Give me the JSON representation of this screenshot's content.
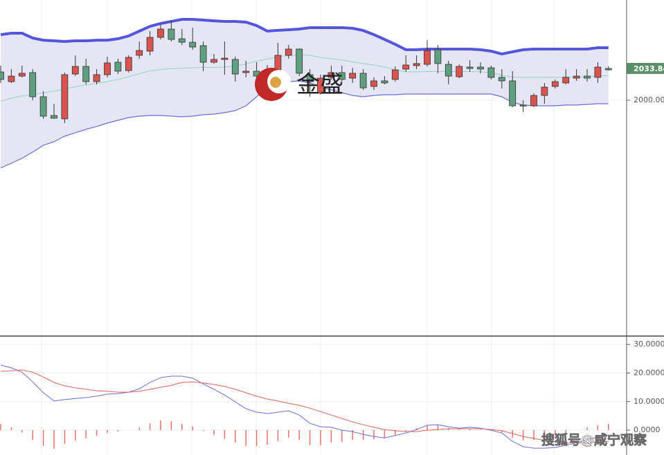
{
  "chart_data": [
    {
      "type": "candlestick",
      "open": [
        2030.1,
        2019.8,
        2025.7,
        2029.4,
        2003.7,
        1983.8,
        1980.2,
        2027.9,
        2036.0,
        2019.8,
        2027.2,
        2040.4,
        2031.6,
        2047.8,
        2052.2,
        2066.9,
        2075.7,
        2065.4,
        2061.7,
        2058.1,
        2040.4,
        2043.4,
        2043.4,
        2029.4,
        2030.9,
        2030.9,
        2030.9,
        2047.8,
        2054.4,
        2027.2,
        2007.4,
        2024.3,
        2029.4,
        2023.5,
        2028.7,
        2014.7,
        2020.6,
        2022.1,
        2033.1,
        2036.8,
        2038.2,
        2053.7,
        2038.2,
        2025.0,
        2035.3,
        2035.3,
        2034.5,
        2024.3,
        2020.6,
        1994.9,
        1994.1,
        2005.1,
        2014.7,
        2018.4,
        2023.5,
        2025.7,
        2024.3,
        2033.8
      ],
      "high": [
        2036.8,
        2033.1,
        2036.8,
        2033.1,
        2009.6,
        1996.3,
        2029.4,
        2047.8,
        2044.1,
        2033.1,
        2046.3,
        2044.1,
        2047.8,
        2062.5,
        2073.5,
        2080.9,
        2084.5,
        2075.7,
        2077.2,
        2062.5,
        2049.2,
        2062.5,
        2046.3,
        2041.9,
        2040.4,
        2037.5,
        2061.0,
        2058.8,
        2055.1,
        2033.1,
        2027.2,
        2036.8,
        2036.8,
        2034.5,
        2033.1,
        2024.3,
        2025.7,
        2036.0,
        2047.8,
        2047.8,
        2063.9,
        2058.8,
        2041.9,
        2038.2,
        2042.6,
        2040.4,
        2036.8,
        2033.1,
        2030.9,
        2000.0,
        2007.4,
        2018.4,
        2022.1,
        2033.1,
        2033.1,
        2033.1,
        2040.4,
        2036.0
      ],
      "low": [
        2018.4,
        2018.4,
        2024.3,
        2000.0,
        1980.2,
        1980.2,
        1975.7,
        2025.7,
        2016.9,
        2016.9,
        2024.3,
        2027.9,
        2029.4,
        2044.1,
        2047.8,
        2064.7,
        2062.5,
        2058.8,
        2053.7,
        2030.9,
        2039.0,
        2027.2,
        2019.8,
        2024.3,
        2018.4,
        2019.8,
        2025.7,
        2044.1,
        2025.7,
        2003.7,
        2005.9,
        2022.1,
        2019.8,
        2018.4,
        2011.0,
        2011.0,
        2016.9,
        2019.8,
        2030.1,
        2033.1,
        2036.0,
        2028.7,
        2016.9,
        2023.5,
        2030.1,
        2028.7,
        2022.1,
        2012.5,
        1992.6,
        1987.5,
        1992.6,
        1996.3,
        2012.5,
        2016.9,
        2020.6,
        2019.8,
        2018.4,
        2031.6
      ],
      "close": [
        2022.1,
        2025.7,
        2028.7,
        2003.7,
        1983.1,
        1980.9,
        2027.2,
        2036.0,
        2019.8,
        2027.2,
        2039.7,
        2030.9,
        2045.6,
        2052.9,
        2066.9,
        2075.7,
        2064.7,
        2061.7,
        2056.6,
        2040.4,
        2043.4,
        2044.8,
        2027.9,
        2030.9,
        2025.7,
        2024.3,
        2047.8,
        2054.4,
        2028.7,
        2019.8,
        2023.5,
        2029.4,
        2022.1,
        2028.7,
        2013.2,
        2020.6,
        2018.4,
        2032.3,
        2037.5,
        2039.0,
        2052.9,
        2039.0,
        2025.7,
        2036.0,
        2033.8,
        2033.1,
        2024.3,
        2020.6,
        1994.1,
        1994.1,
        2005.1,
        2014.0,
        2019.8,
        2024.3,
        2025.7,
        2023.5,
        2035.3,
        2032.3
      ],
      "up_color": "#d9534f",
      "down_color": "#5e9f80",
      "upper_band": {
        "color": "#5454dc",
        "values": [
          2069.8,
          2071.3,
          2071.3,
          2066.2,
          2063.9,
          2063.2,
          2062.5,
          2063.2,
          2063.2,
          2063.9,
          2063.9,
          2065.4,
          2068.4,
          2073.5,
          2078.6,
          2081.6,
          2083.8,
          2086.0,
          2086.0,
          2085.3,
          2084.5,
          2083.8,
          2083.8,
          2083.1,
          2079.4,
          2073.5,
          2074.3,
          2075.0,
          2075.7,
          2077.2,
          2077.2,
          2077.2,
          2077.2,
          2076.5,
          2074.2,
          2069.8,
          2064.7,
          2059.5,
          2053.7,
          2053.7,
          2054.4,
          2054.4,
          2054.4,
          2054.4,
          2054.4,
          2053.7,
          2052.2,
          2049.2,
          2051.5,
          2053.7,
          2054.4,
          2054.4,
          2054.4,
          2054.4,
          2054.4,
          2054.4,
          2055.9,
          2055.9
        ]
      },
      "middle_band": {
        "color": "#8fd6c4",
        "values": [
          1998.9,
          2002.2,
          2004.8,
          2005.6,
          2008.1,
          2009.6,
          2012.2,
          2014.4,
          2016.2,
          2018.0,
          2019.8,
          2022.1,
          2025.0,
          2028.3,
          2031.2,
          2032.7,
          2033.5,
          2034.2,
          2034.6,
          2035.0,
          2034.9,
          2035.3,
          2036.4,
          2038.6,
          2041.6,
          2043.8,
          2046.4,
          2047.4,
          2048.2,
          2047.8,
          2045.6,
          2044.1,
          2042.7,
          2040.8,
          2039.0,
          2037.5,
          2035.3,
          2032.7,
          2030.2,
          2030.2,
          2030.5,
          2030.5,
          2030.5,
          2030.5,
          2030.5,
          2030.2,
          2029.4,
          2026.5,
          2024.7,
          2024.3,
          2024.3,
          2024.3,
          2024.3,
          2024.7,
          2024.7,
          2025.0,
          2026.1,
          2026.1
        ]
      },
      "lower_band": {
        "color": "#6b6be0",
        "values": [
          1928.0,
          1933.1,
          1938.3,
          1944.9,
          1952.2,
          1955.9,
          1961.8,
          1965.5,
          1969.1,
          1972.1,
          1975.7,
          1978.7,
          1981.6,
          1983.1,
          1983.8,
          1983.8,
          1983.1,
          1982.4,
          1983.1,
          1984.6,
          1985.3,
          1986.8,
          1989.0,
          1994.1,
          2003.7,
          2014.0,
          2018.4,
          2019.8,
          2020.6,
          2018.4,
          2014.0,
          2011.0,
          2008.1,
          2005.1,
          2003.7,
          2005.1,
          2005.9,
          2005.9,
          2006.6,
          2006.6,
          2006.6,
          2006.6,
          2006.6,
          2006.6,
          2006.6,
          2006.6,
          2006.6,
          2003.7,
          1997.8,
          1994.9,
          1994.1,
          1994.1,
          1994.1,
          1994.9,
          1994.9,
          1995.6,
          1996.3,
          1996.3
        ]
      },
      "band_fill": "#e5e5f3",
      "ylim": [
        1750,
        2106.6
      ],
      "yticks": [
        {
          "value": 2000,
          "label": "2000.00"
        }
      ],
      "last_price": 2033.84,
      "last_price_color": "#5b8f6a",
      "grid": true
    },
    {
      "type": "macd",
      "series": [
        {
          "color": "#6b6be0",
          "values": [
            22.8,
            21.8,
            20.3,
            16.9,
            13.1,
            10.2,
            10.7,
            11.1,
            11.4,
            11.9,
            12.6,
            12.8,
            13.3,
            14.5,
            16.7,
            18.4,
            18.9,
            18.9,
            18.2,
            16.2,
            14.3,
            12.3,
            9.9,
            7.5,
            6.3,
            5.8,
            6.3,
            6.8,
            5.3,
            2.4,
            1.2,
            1.0,
            0.0,
            -0.5,
            -1.5,
            -2.2,
            -2.7,
            -1.9,
            -1.0,
            0.2,
            1.7,
            1.9,
            1.2,
            0.7,
            1.0,
            0.7,
            0.0,
            -1.0,
            -3.9,
            -5.8,
            -6.3,
            -6.3,
            -6.1,
            -5.3,
            -4.4,
            -3.4,
            -2.4,
            -1.7
          ]
        },
        {
          "color": "#e0605c",
          "values": [
            20.6,
            20.8,
            21.1,
            20.3,
            18.6,
            16.7,
            15.5,
            14.8,
            14.3,
            13.8,
            13.6,
            13.3,
            13.3,
            13.6,
            14.3,
            15.0,
            15.7,
            16.7,
            16.9,
            16.5,
            16.0,
            15.3,
            14.3,
            13.1,
            11.9,
            10.9,
            10.2,
            9.4,
            8.7,
            7.7,
            6.5,
            5.3,
            4.1,
            2.9,
            1.9,
            1.0,
            0.2,
            -0.2,
            -0.5,
            -0.5,
            0.0,
            0.2,
            0.5,
            0.5,
            0.5,
            0.5,
            0.2,
            -0.2,
            -1.2,
            -2.2,
            -2.9,
            -3.6,
            -4.1,
            -4.4,
            -4.4,
            -4.4,
            -4.1,
            -3.9
          ]
        }
      ],
      "histogram": {
        "color": "#e8706c",
        "values": [
          2.2,
          1.0,
          -0.8,
          -3.4,
          -5.5,
          -6.5,
          -4.8,
          -3.7,
          -2.9,
          -1.9,
          -1.0,
          -0.5,
          0.0,
          0.9,
          2.4,
          3.4,
          3.2,
          2.2,
          1.3,
          -0.3,
          -1.7,
          -3.0,
          -4.4,
          -5.6,
          -5.6,
          -5.1,
          -3.9,
          -2.6,
          -3.4,
          -5.3,
          -5.3,
          -4.3,
          -4.1,
          -3.4,
          -3.4,
          -3.2,
          -2.9,
          -1.7,
          -0.5,
          0.7,
          1.7,
          1.7,
          0.7,
          0.2,
          0.5,
          0.2,
          -0.2,
          -0.8,
          -2.7,
          -3.6,
          -3.4,
          -2.7,
          -2.0,
          -0.9,
          0.0,
          1.0,
          1.7,
          2.2
        ]
      },
      "ylim": [
        -8.7,
        32.7
      ],
      "yticks": [
        {
          "value": 0,
          "label": "0.0000"
        },
        {
          "value": 10,
          "label": "10.0000"
        },
        {
          "value": 20,
          "label": "20.0000"
        },
        {
          "value": 30,
          "label": "30.0000"
        }
      ],
      "grid": true
    }
  ],
  "watermark": {
    "logo_text": "金盛",
    "source": "搜狐号@咸宁观察"
  }
}
